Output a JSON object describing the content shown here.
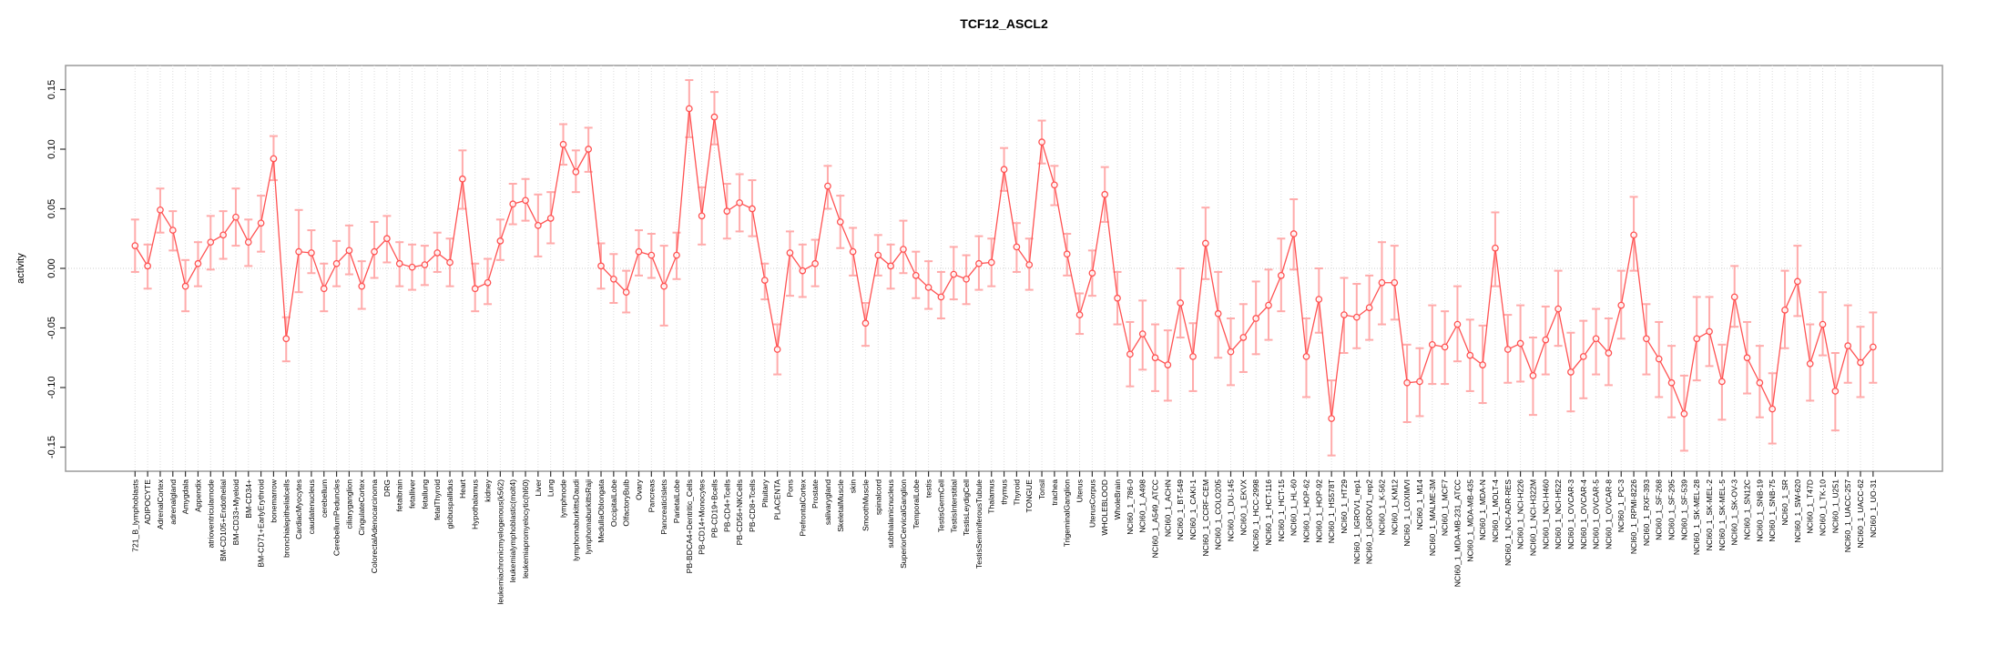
{
  "chart_data": {
    "type": "line",
    "title": "TCF12_ASCL2",
    "ylabel": "activity",
    "xlabel": "",
    "ylim": [
      -0.17,
      0.17
    ],
    "y_ticks": [
      "-0.15",
      "-0.10",
      "-0.05",
      "0.00",
      "0.05",
      "0.10",
      "0.15"
    ],
    "grid": "vertical-dotted",
    "legend": "none",
    "series_color": "#ff5252",
    "errorbar_color": "#ffabab",
    "categories": [
      "721_B_lymphoblasts",
      "ADIPOCYTE",
      "AdrenalCortex",
      "adrenalgland",
      "Amygdala",
      "Appendix",
      "atrioventricularnode",
      "BM-CD105+Endothelial",
      "BM-CD33+Myeloid",
      "BM-CD34+",
      "BM-CD71+EarlyErythroid",
      "bonemarrow",
      "bronchialepithelialcells",
      "CardiacMyocytes",
      "caudatenucleus",
      "cerebellum",
      "CerebellumPeduncles",
      "ciliaryganglion",
      "CingulateCortex",
      "ColorectalAdenocarcinoma",
      "DRG",
      "fetalbrain",
      "fetalliver",
      "fetallung",
      "fetalThyroid",
      "globuspallidus",
      "Heart",
      "Hypothalamus",
      "kidney",
      "leukemiachronicmyelogenous(k562)",
      "leukemialymphoblastic(molt4)",
      "leukemiapromyelocytic(hl60)",
      "Liver",
      "Lung",
      "lymphnode",
      "lymphomaburkittsDaudi",
      "lymphomaburkittsRaji",
      "MedullaOblongata",
      "OccipitalLobe",
      "OlfactoryBulb",
      "Ovary",
      "Pancreas",
      "PancreaticIslets",
      "ParietalLobe",
      "PB-BDCA4+Dentritic_Cells",
      "PB-CD14+Monocytes",
      "PB-CD19+Bcells",
      "PB-CD4+Tcells",
      "PB-CD56+NKCells",
      "PB-CD8+Tcells",
      "Pituitary",
      "PLACENTA",
      "Pons",
      "PrefrontalCortex",
      "Prostate",
      "salivarygland",
      "SkeletalMuscle",
      "skin",
      "SmoothMuscle",
      "spinalcord",
      "subthalamicnucleus",
      "SuperiorCervicalGanglion",
      "TemporalLobe",
      "testis",
      "TestisGermCell",
      "TestisInterstitial",
      "TestisLeydigCell",
      "TestisSeminiferousTubule",
      "Thalamus",
      "thymus",
      "Thyroid",
      "TONGUE",
      "Tonsil",
      "trachea",
      "TrigeminalGanglion",
      "Uterus",
      "UterusCorpus",
      "WHOLEBLOOD",
      "WholeBrain",
      "NCI60_1_786-0",
      "NCI60_1_A498",
      "NCI60_1_A549_ATCC",
      "NCI60_1_ACHN",
      "NCI60_1_BT-549",
      "NCI60_1_CAKI-1",
      "NCI60_1_CCRF-CEM",
      "NCI60_1_COLO205",
      "NCI60_1_DU-145",
      "NCI60_1_EKVX",
      "NCI60_1_HCC-2998",
      "NCI60_1_HCT-116",
      "NCI60_1_HCT-15",
      "NCI60_1_HL-60",
      "NCI60_1_HOP-62",
      "NCI60_1_HOP-92",
      "NCI60_1_HS578T",
      "NCI60_1_HT29",
      "NCI60_1_IGROV1_rep1",
      "NCI60_1_IGROV1_rep2",
      "NCI60_1_K-562",
      "NCI60_1_KM12",
      "NCI60_1_LOXIMVI",
      "NCI60_1_M14",
      "NCI60_1_MALME-3M",
      "NCI60_1_MCF7",
      "NCI60_1_MDA-MB-231_ATCC",
      "NCI60_1_MDA-MB-435",
      "NCI60_1_MDA-N",
      "NCI60_1_MOLT-4",
      "NCI60_1_NCI-ADR-RES",
      "NCI60_1_NCI-H226",
      "NCI60_1_NCI-H322M",
      "NCI60_1_NCI-H460",
      "NCI60_1_NCI-H522",
      "NCI60_1_OVCAR-3",
      "NCI60_1_OVCAR-4",
      "NCI60_1_OVCAR-5",
      "NCI60_1_OVCAR-8",
      "NCI60_1_PC-3",
      "NCI60_1_RPMI-8226",
      "NCI60_1_RXF-393",
      "NCI60_1_SF-268",
      "NCI60_1_SF-295",
      "NCI60_1_SF-539",
      "NCI60_1_SK-MEL-28",
      "NCI60_1_SK-MEL-2",
      "NCI60_1_SK-MEL-5",
      "NCI60_1_SK-OV-3",
      "NCI60_1_SN12C",
      "NCI60_1_SNB-19",
      "NCI60_1_SNB-75",
      "NCI60_1_SR",
      "NCI60_1_SW-620",
      "NCI60_1_T47D",
      "NCI60_1_TK-10",
      "NCI60_1_U251",
      "NCI60_1_UACC-257",
      "NCI60_1_UACC-62",
      "NCI60_1_UO-31"
    ],
    "values": [
      0.019,
      0.002,
      0.049,
      0.032,
      -0.015,
      0.004,
      0.022,
      0.028,
      0.043,
      0.022,
      0.038,
      0.092,
      -0.059,
      0.014,
      0.013,
      -0.017,
      0.004,
      0.015,
      -0.015,
      0.014,
      0.025,
      0.004,
      0.001,
      0.003,
      0.013,
      0.005,
      0.075,
      -0.017,
      -0.012,
      0.023,
      0.054,
      0.057,
      0.036,
      0.042,
      0.104,
      0.081,
      0.1,
      0.002,
      -0.009,
      -0.02,
      0.014,
      0.011,
      -0.015,
      0.011,
      0.134,
      0.044,
      0.127,
      0.048,
      0.055,
      0.05,
      -0.01,
      -0.068,
      0.013,
      -0.002,
      0.004,
      0.069,
      0.039,
      0.014,
      -0.046,
      0.011,
      0.002,
      0.016,
      -0.006,
      -0.016,
      -0.024,
      -0.005,
      -0.009,
      0.004,
      0.005,
      0.083,
      0.018,
      0.003,
      0.106,
      0.07,
      0.012,
      -0.039,
      -0.004,
      0.062,
      -0.025,
      -0.072,
      -0.055,
      -0.075,
      -0.081,
      -0.029,
      -0.074,
      0.021,
      -0.038,
      -0.07,
      -0.058,
      -0.042,
      -0.031,
      -0.006,
      0.029,
      -0.074,
      -0.026,
      -0.126,
      -0.039,
      -0.041,
      -0.033,
      -0.012,
      -0.012,
      -0.096,
      -0.095,
      -0.064,
      -0.066,
      -0.047,
      -0.073,
      -0.081,
      0.017,
      -0.068,
      -0.063,
      -0.09,
      -0.06,
      -0.034,
      -0.087,
      -0.074,
      -0.059,
      -0.071,
      -0.031,
      0.028,
      -0.059,
      -0.076,
      -0.096,
      -0.122,
      -0.059,
      -0.053,
      -0.095,
      -0.024,
      -0.075,
      -0.096,
      -0.118,
      -0.035,
      -0.011,
      -0.08,
      -0.047,
      -0.103,
      -0.065,
      -0.079,
      -0.066
    ],
    "err_lo": [
      -0.003,
      -0.017,
      0.03,
      0.015,
      -0.036,
      -0.015,
      -0.001,
      0.008,
      0.019,
      0.002,
      0.014,
      0.074,
      -0.078,
      -0.02,
      -0.004,
      -0.036,
      -0.015,
      -0.005,
      -0.034,
      -0.008,
      0.005,
      -0.015,
      -0.018,
      -0.014,
      -0.003,
      -0.015,
      0.05,
      -0.036,
      -0.03,
      0.007,
      0.037,
      0.04,
      0.01,
      0.021,
      0.087,
      0.064,
      0.081,
      -0.017,
      -0.029,
      -0.037,
      -0.006,
      -0.008,
      -0.048,
      -0.009,
      0.11,
      0.02,
      0.104,
      0.025,
      0.031,
      0.027,
      -0.026,
      -0.089,
      -0.023,
      -0.024,
      -0.015,
      0.05,
      0.017,
      -0.006,
      -0.065,
      -0.006,
      -0.017,
      -0.004,
      -0.025,
      -0.034,
      -0.042,
      -0.026,
      -0.03,
      -0.018,
      -0.015,
      0.065,
      -0.003,
      -0.018,
      0.088,
      0.053,
      -0.006,
      -0.055,
      -0.023,
      0.039,
      -0.047,
      -0.099,
      -0.085,
      -0.103,
      -0.111,
      -0.058,
      -0.103,
      -0.009,
      -0.075,
      -0.098,
      -0.087,
      -0.072,
      -0.06,
      -0.036,
      -0.001,
      -0.108,
      -0.054,
      -0.157,
      -0.071,
      -0.067,
      -0.06,
      -0.047,
      -0.043,
      -0.129,
      -0.124,
      -0.097,
      -0.097,
      -0.078,
      -0.103,
      -0.113,
      -0.015,
      -0.096,
      -0.095,
      -0.123,
      -0.089,
      -0.065,
      -0.12,
      -0.109,
      -0.089,
      -0.098,
      -0.059,
      -0.002,
      -0.089,
      -0.108,
      -0.125,
      -0.153,
      -0.094,
      -0.082,
      -0.127,
      -0.049,
      -0.105,
      -0.125,
      -0.147,
      -0.067,
      -0.04,
      -0.111,
      -0.073,
      -0.136,
      -0.096,
      -0.108,
      -0.096
    ],
    "err_hi": [
      0.041,
      0.02,
      0.067,
      0.048,
      0.007,
      0.022,
      0.044,
      0.048,
      0.067,
      0.041,
      0.061,
      0.111,
      -0.041,
      0.049,
      0.032,
      0.004,
      0.023,
      0.036,
      0.006,
      0.039,
      0.044,
      0.022,
      0.02,
      0.019,
      0.03,
      0.025,
      0.099,
      0.004,
      0.008,
      0.041,
      0.071,
      0.075,
      0.062,
      0.064,
      0.121,
      0.099,
      0.118,
      0.021,
      0.012,
      -0.002,
      0.032,
      0.029,
      0.019,
      0.03,
      0.158,
      0.068,
      0.148,
      0.071,
      0.079,
      0.074,
      0.004,
      -0.047,
      0.031,
      0.02,
      0.024,
      0.086,
      0.061,
      0.034,
      -0.029,
      0.028,
      0.02,
      0.04,
      0.014,
      0.006,
      -0.003,
      0.018,
      0.011,
      0.027,
      0.025,
      0.101,
      0.038,
      0.025,
      0.124,
      0.086,
      0.029,
      -0.021,
      0.015,
      0.085,
      -0.003,
      -0.045,
      -0.027,
      -0.047,
      -0.052,
      0.0,
      -0.046,
      0.051,
      -0.003,
      -0.042,
      -0.03,
      -0.011,
      -0.001,
      0.025,
      0.058,
      -0.042,
      0.0,
      -0.094,
      -0.008,
      -0.013,
      -0.006,
      0.022,
      0.019,
      -0.064,
      -0.067,
      -0.031,
      -0.036,
      -0.015,
      -0.043,
      -0.048,
      0.047,
      -0.039,
      -0.031,
      -0.058,
      -0.032,
      -0.002,
      -0.054,
      -0.044,
      -0.034,
      -0.042,
      -0.002,
      0.06,
      -0.03,
      -0.045,
      -0.065,
      -0.09,
      -0.024,
      -0.024,
      -0.064,
      0.002,
      -0.045,
      -0.065,
      -0.088,
      -0.002,
      0.019,
      -0.047,
      -0.02,
      -0.071,
      -0.031,
      -0.049,
      -0.037
    ]
  }
}
